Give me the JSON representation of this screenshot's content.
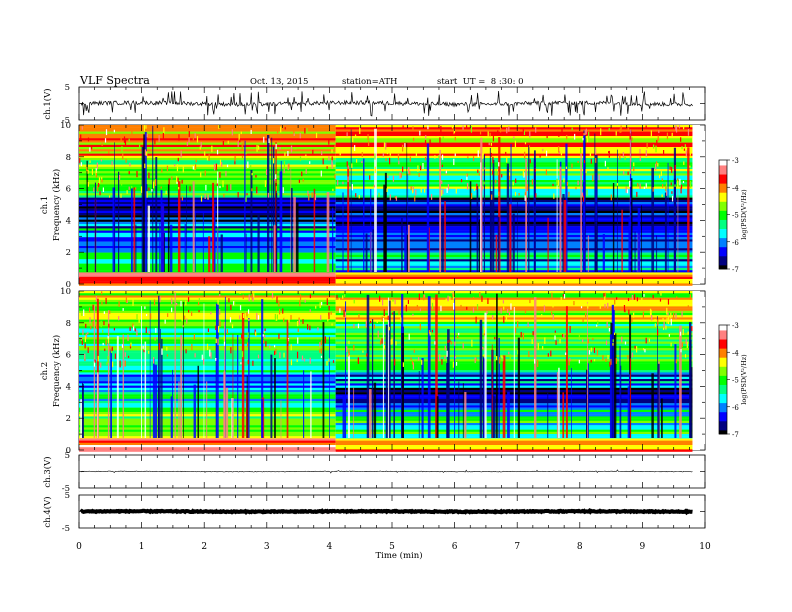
{
  "header": {
    "title": "VLF Spectra",
    "date": "Oct. 13, 2015",
    "station": "station=ATH",
    "start": "start  UT =  8 :30: 0"
  },
  "colors": {
    "scale": [
      "#000000",
      "#00007f",
      "#0000ff",
      "#0080ff",
      "#00ffff",
      "#00ff80",
      "#00ff00",
      "#80ff00",
      "#ffff00",
      "#ff8000",
      "#ff0000",
      "#ff8080",
      "#ffffff"
    ],
    "background": "#ffffff"
  },
  "chart_data": [
    {
      "id": "ch1-waveform",
      "type": "line",
      "ylabel": "ch.1(V)",
      "ylim": [
        -5,
        5
      ],
      "yticks": [
        "5",
        "-5"
      ],
      "xlim": [
        0,
        10
      ],
      "trace": {
        "baseline": 0,
        "noise_amplitude": 0.6,
        "spike_count": 95,
        "spike_max": 3.8,
        "end_time": 9.8
      }
    },
    {
      "id": "ch1-spectrogram",
      "type": "heatmap",
      "channel": "ch.1",
      "ylabel": "Frequency (kHz)",
      "ylim": [
        0,
        10
      ],
      "yticks": [
        "0",
        "2",
        "4",
        "6",
        "8",
        "10"
      ],
      "xlim": [
        0,
        9.8
      ],
      "colorbar": {
        "label": "log(PSD(V²/Hz)",
        "range": [
          -7,
          -3
        ],
        "ticks": [
          "-3",
          "-4",
          "-5",
          "-6",
          "-7"
        ]
      },
      "bands": [
        {
          "freq": [
            0,
            0.8
          ],
          "value": -3.8
        },
        {
          "freq": [
            0.8,
            2.2
          ],
          "value": -5.6
        },
        {
          "freq": [
            2.2,
            3.6
          ],
          "value": -6.2
        },
        {
          "freq": [
            3.6,
            5.5
          ],
          "value": -6.6
        },
        {
          "freq": [
            5.5,
            8.0
          ],
          "value": -5.0
        },
        {
          "freq": [
            8.0,
            10
          ],
          "value": -4.2
        }
      ],
      "regime_change_time": 4.1,
      "vertical_bursts": 140
    },
    {
      "id": "ch2-spectrogram",
      "type": "heatmap",
      "channel": "ch.2",
      "ylabel": "Frequency (kHz)",
      "ylim": [
        0,
        10
      ],
      "yticks": [
        "0",
        "2",
        "4",
        "6",
        "8",
        "10"
      ],
      "xlim": [
        0,
        9.8
      ],
      "colorbar": {
        "label": "log(PSD(V²/Hz)",
        "range": [
          -7,
          -3
        ],
        "ticks": [
          "-3",
          "-4",
          "-5",
          "-6",
          "-7"
        ]
      },
      "bands": [
        {
          "freq": [
            0,
            0.8
          ],
          "value": -4.0
        },
        {
          "freq": [
            0.8,
            2.8
          ],
          "value": -5.2
        },
        {
          "freq": [
            2.8,
            5.0
          ],
          "value": -6.0
        },
        {
          "freq": [
            5.0,
            8.0
          ],
          "value": -5.2
        },
        {
          "freq": [
            8.0,
            10
          ],
          "value": -4.4
        }
      ],
      "regime_change_time": 4.1,
      "vertical_bursts": 130
    },
    {
      "id": "ch3-waveform",
      "type": "line",
      "ylabel": "ch.3(V)",
      "ylim": [
        -5,
        5
      ],
      "yticks": [
        "5",
        "-5"
      ],
      "xlim": [
        0,
        10
      ],
      "trace": {
        "baseline": 0,
        "noise_amplitude": 0.1,
        "spike_count": 12,
        "spike_max": 0.5,
        "end_time": 9.8
      }
    },
    {
      "id": "ch4-waveform",
      "type": "line",
      "ylabel": "ch.4(V)",
      "ylim": [
        -5,
        5
      ],
      "yticks": [
        "5",
        "-5"
      ],
      "xlim": [
        0,
        10
      ],
      "trace": {
        "baseline": 0,
        "noise_amplitude": 0.15,
        "spike_count": 0,
        "spike_max": 0,
        "end_time": 9.8,
        "thick": true
      }
    }
  ],
  "xaxis": {
    "label": "Time (min)",
    "range": [
      0,
      10
    ],
    "ticks": [
      "0",
      "1",
      "2",
      "3",
      "4",
      "5",
      "6",
      "7",
      "8",
      "9",
      "10"
    ]
  }
}
